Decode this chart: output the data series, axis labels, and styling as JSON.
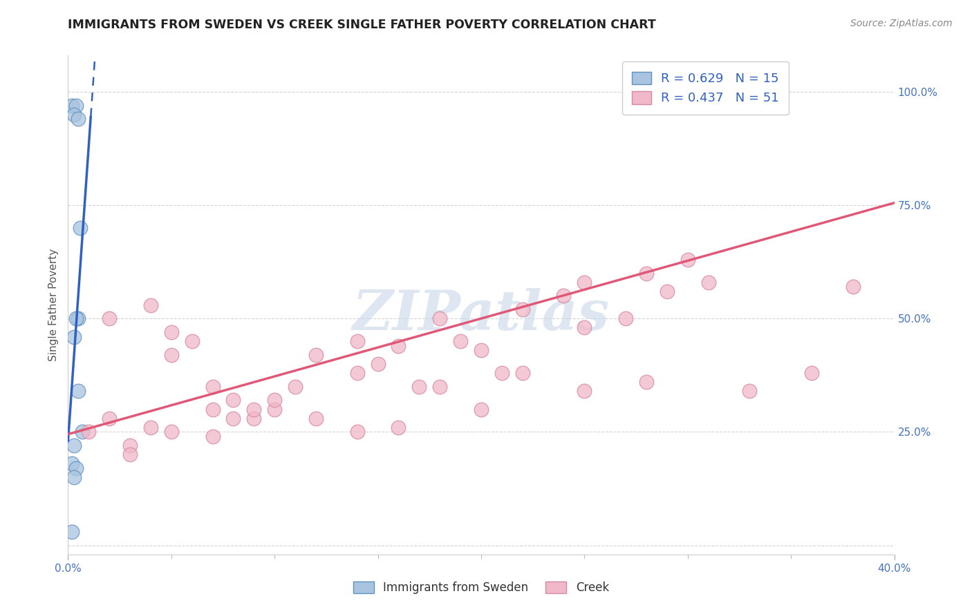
{
  "title": "IMMIGRANTS FROM SWEDEN VS CREEK SINGLE FATHER POVERTY CORRELATION CHART",
  "source_text": "Source: ZipAtlas.com",
  "ylabel": "Single Father Poverty",
  "xlim": [
    0.0,
    0.4
  ],
  "ylim": [
    -0.02,
    1.08
  ],
  "x_ticks_minor": [
    0.05,
    0.1,
    0.15,
    0.2,
    0.25,
    0.3,
    0.35
  ],
  "x_ticks_label": [
    0.0,
    0.4
  ],
  "x_tick_labels": [
    "0.0%",
    "40.0%"
  ],
  "y_ticks": [
    0.0,
    0.25,
    0.5,
    0.75,
    1.0
  ],
  "y_tick_labels": [
    "",
    "25.0%",
    "50.0%",
    "75.0%",
    "100.0%"
  ],
  "watermark": "ZIPatlas",
  "watermark_color": "#c8d8e8",
  "background_color": "#ffffff",
  "grid_color": "#d0d0d0",
  "blue_color": "#a8c4e0",
  "blue_edge_color": "#6090c0",
  "pink_color": "#f0b8c8",
  "pink_edge_color": "#d888a0",
  "blue_line_color": "#3060c0",
  "pink_line_color": "#e05878",
  "blue_R": 0.629,
  "blue_N": 15,
  "pink_R": 0.437,
  "pink_N": 51,
  "legend_color": "#3060c0",
  "blue_scatter_x": [
    0.002,
    0.004,
    0.003,
    0.005,
    0.006,
    0.005,
    0.004,
    0.003,
    0.005,
    0.007,
    0.003,
    0.002,
    0.004,
    0.003,
    0.002
  ],
  "blue_scatter_y": [
    0.97,
    0.97,
    0.95,
    0.94,
    0.7,
    0.5,
    0.5,
    0.46,
    0.34,
    0.25,
    0.22,
    0.18,
    0.17,
    0.15,
    0.03
  ],
  "pink_scatter_x": [
    0.02,
    0.04,
    0.05,
    0.05,
    0.06,
    0.07,
    0.07,
    0.08,
    0.09,
    0.1,
    0.11,
    0.12,
    0.14,
    0.14,
    0.15,
    0.16,
    0.17,
    0.18,
    0.19,
    0.2,
    0.21,
    0.22,
    0.24,
    0.25,
    0.25,
    0.27,
    0.28,
    0.29,
    0.3,
    0.31,
    0.01,
    0.02,
    0.03,
    0.03,
    0.04,
    0.05,
    0.07,
    0.08,
    0.09,
    0.1,
    0.12,
    0.14,
    0.16,
    0.18,
    0.2,
    0.22,
    0.25,
    0.28,
    0.33,
    0.36,
    0.38
  ],
  "pink_scatter_y": [
    0.5,
    0.53,
    0.47,
    0.42,
    0.45,
    0.35,
    0.3,
    0.32,
    0.28,
    0.3,
    0.35,
    0.42,
    0.38,
    0.45,
    0.4,
    0.44,
    0.35,
    0.5,
    0.45,
    0.43,
    0.38,
    0.52,
    0.55,
    0.58,
    0.48,
    0.5,
    0.6,
    0.56,
    0.63,
    0.58,
    0.25,
    0.28,
    0.22,
    0.2,
    0.26,
    0.25,
    0.24,
    0.28,
    0.3,
    0.32,
    0.28,
    0.25,
    0.26,
    0.35,
    0.3,
    0.38,
    0.34,
    0.36,
    0.34,
    0.38,
    0.57
  ],
  "blue_line_x0": 0.0,
  "blue_line_y0": 0.23,
  "blue_line_slope": 65.0,
  "blue_line_solid_end_x": 0.011,
  "blue_line_dashed_end_x": 0.013,
  "pink_line_x0": 0.0,
  "pink_line_y0": 0.245,
  "pink_line_x1": 0.4,
  "pink_line_y1": 0.755
}
